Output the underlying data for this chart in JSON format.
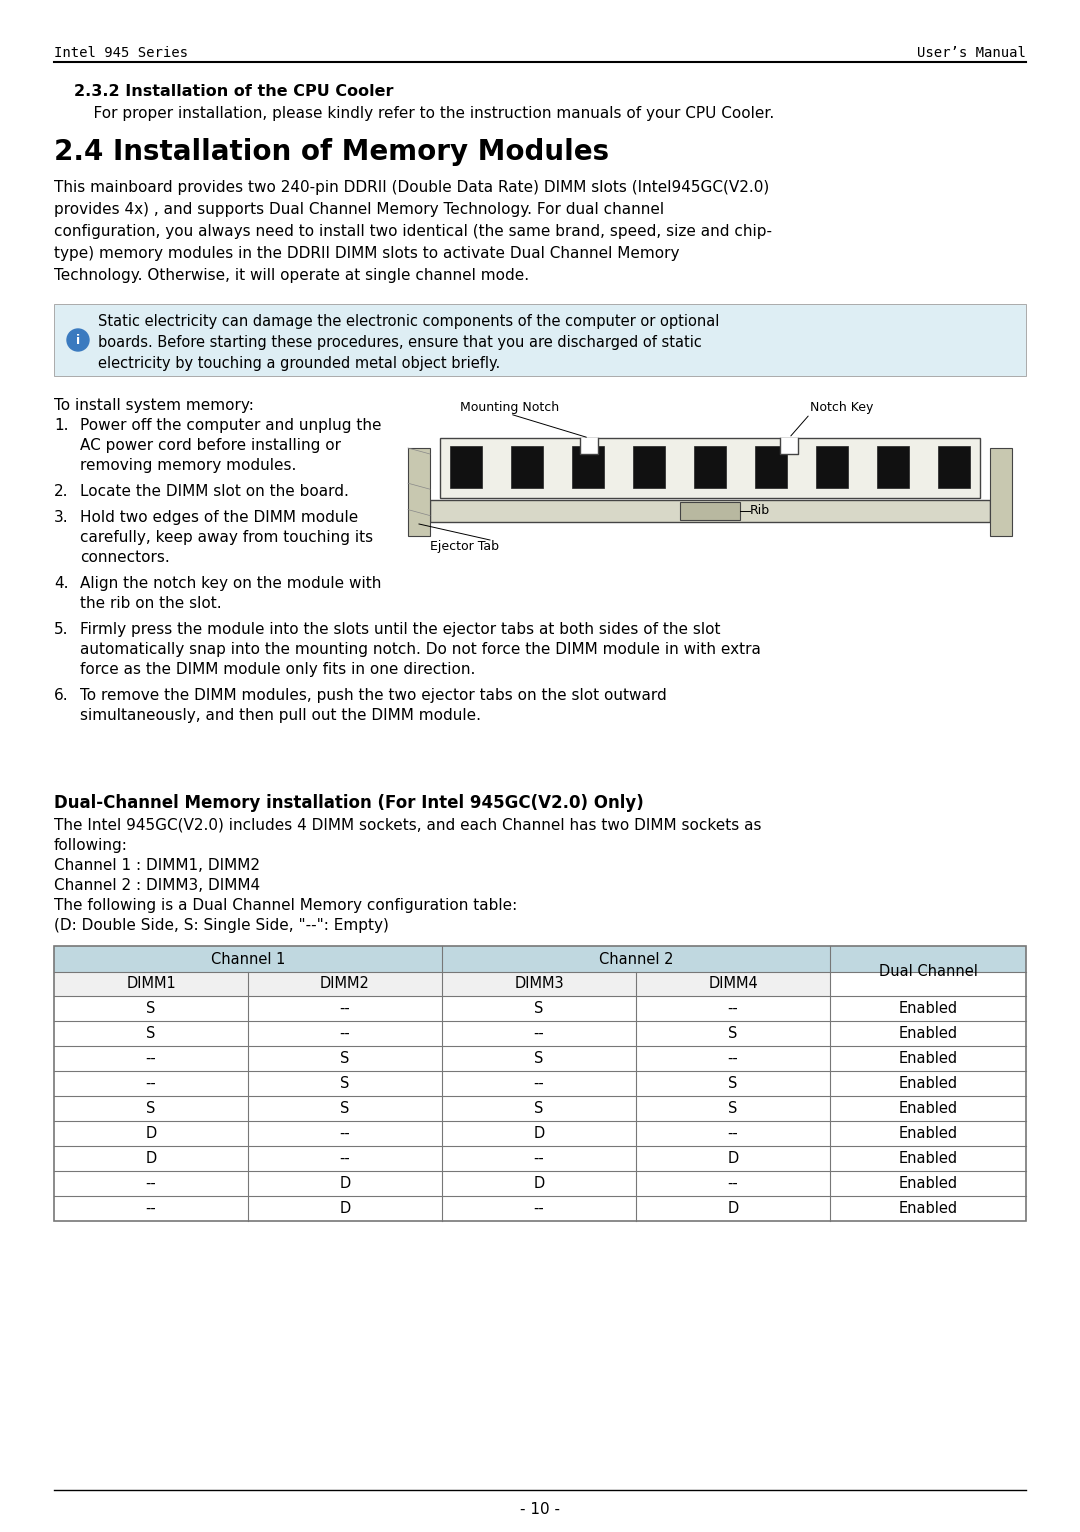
{
  "header_left": "Intel 945 Series",
  "header_right": "User’s Manual",
  "section_232_title": "2.3.2 Installation of the CPU Cooler",
  "section_232_body": "    For proper installation, please kindly refer to the instruction manuals of your CPU Cooler.",
  "section_24_title": "2.4 Installation of Memory Modules",
  "section_24_body_lines": [
    "This mainboard provides two 240-pin DDRII (Double Data Rate) DIMM slots (Intel945GC(V2.0)",
    "provides 4x) , and supports Dual Channel Memory Technology. For dual channel",
    "configuration, you always need to install two identical (the same brand, speed, size and chip-",
    "type) memory modules in the DDRII DIMM slots to activate Dual Channel Memory",
    "Technology. Otherwise, it will operate at single channel mode."
  ],
  "warning_lines": [
    "Static electricity can damage the electronic components of the computer or optional",
    "boards. Before starting these procedures, ensure that you are discharged of static",
    "electricity by touching a grounded metal object briefly."
  ],
  "install_intro": "To install system memory:",
  "steps_short": [
    [
      "1.",
      "Power off the computer and unplug the",
      "AC power cord before installing or",
      "removing memory modules."
    ],
    [
      "2.",
      "Locate the DIMM slot on the board."
    ],
    [
      "3.",
      "Hold two edges of the DIMM module",
      "carefully, keep away from touching its",
      "connectors."
    ],
    [
      "4.",
      "Align the notch key on the module with",
      "the rib on the slot."
    ]
  ],
  "steps_full": [
    [
      "5.",
      "Firmly press the module into the slots until the ejector tabs at both sides of the slot",
      "automatically snap into the mounting notch. Do not force the DIMM module in with extra",
      "force as the DIMM module only fits in one direction."
    ],
    [
      "6.",
      "To remove the DIMM modules, push the two ejector tabs on the slot outward",
      "simultaneously, and then pull out the DIMM module."
    ]
  ],
  "dual_channel_title": "Dual-Channel Memory installation (For Intel 945GC(V2.0) Only)",
  "dual_channel_body_lines": [
    "The Intel 945GC(V2.0) includes 4 DIMM sockets, and each Channel has two DIMM sockets as",
    "following:",
    "Channel 1 : DIMM1, DIMM2",
    "Channel 2 : DIMM3, DIMM4",
    "The following is a Dual Channel Memory configuration table:",
    "(D: Double Side, S: Single Side, \"--\": Empty)"
  ],
  "table_data": [
    [
      "S",
      "--",
      "S",
      "--",
      "Enabled"
    ],
    [
      "S",
      "--",
      "--",
      "S",
      "Enabled"
    ],
    [
      "--",
      "S",
      "S",
      "--",
      "Enabled"
    ],
    [
      "--",
      "S",
      "--",
      "S",
      "Enabled"
    ],
    [
      "S",
      "S",
      "S",
      "S",
      "Enabled"
    ],
    [
      "D",
      "--",
      "D",
      "--",
      "Enabled"
    ],
    [
      "D",
      "--",
      "--",
      "D",
      "Enabled"
    ],
    [
      "--",
      "D",
      "D",
      "--",
      "Enabled"
    ],
    [
      "--",
      "D",
      "--",
      "D",
      "Enabled"
    ]
  ],
  "page_number": "- 10 -",
  "bg_color": "#ffffff",
  "warn_bg": "#deeef4",
  "warn_border": "#aaaaaa",
  "warn_icon_color": "#3a7abf",
  "table_header_bg": "#c0d8e0",
  "table_subheader_bg": "#e8e8e8",
  "table_border_color": "#777777",
  "text_color": "#000000",
  "font": "DejaVu Sans",
  "mono_font": "DejaVu Sans Mono"
}
